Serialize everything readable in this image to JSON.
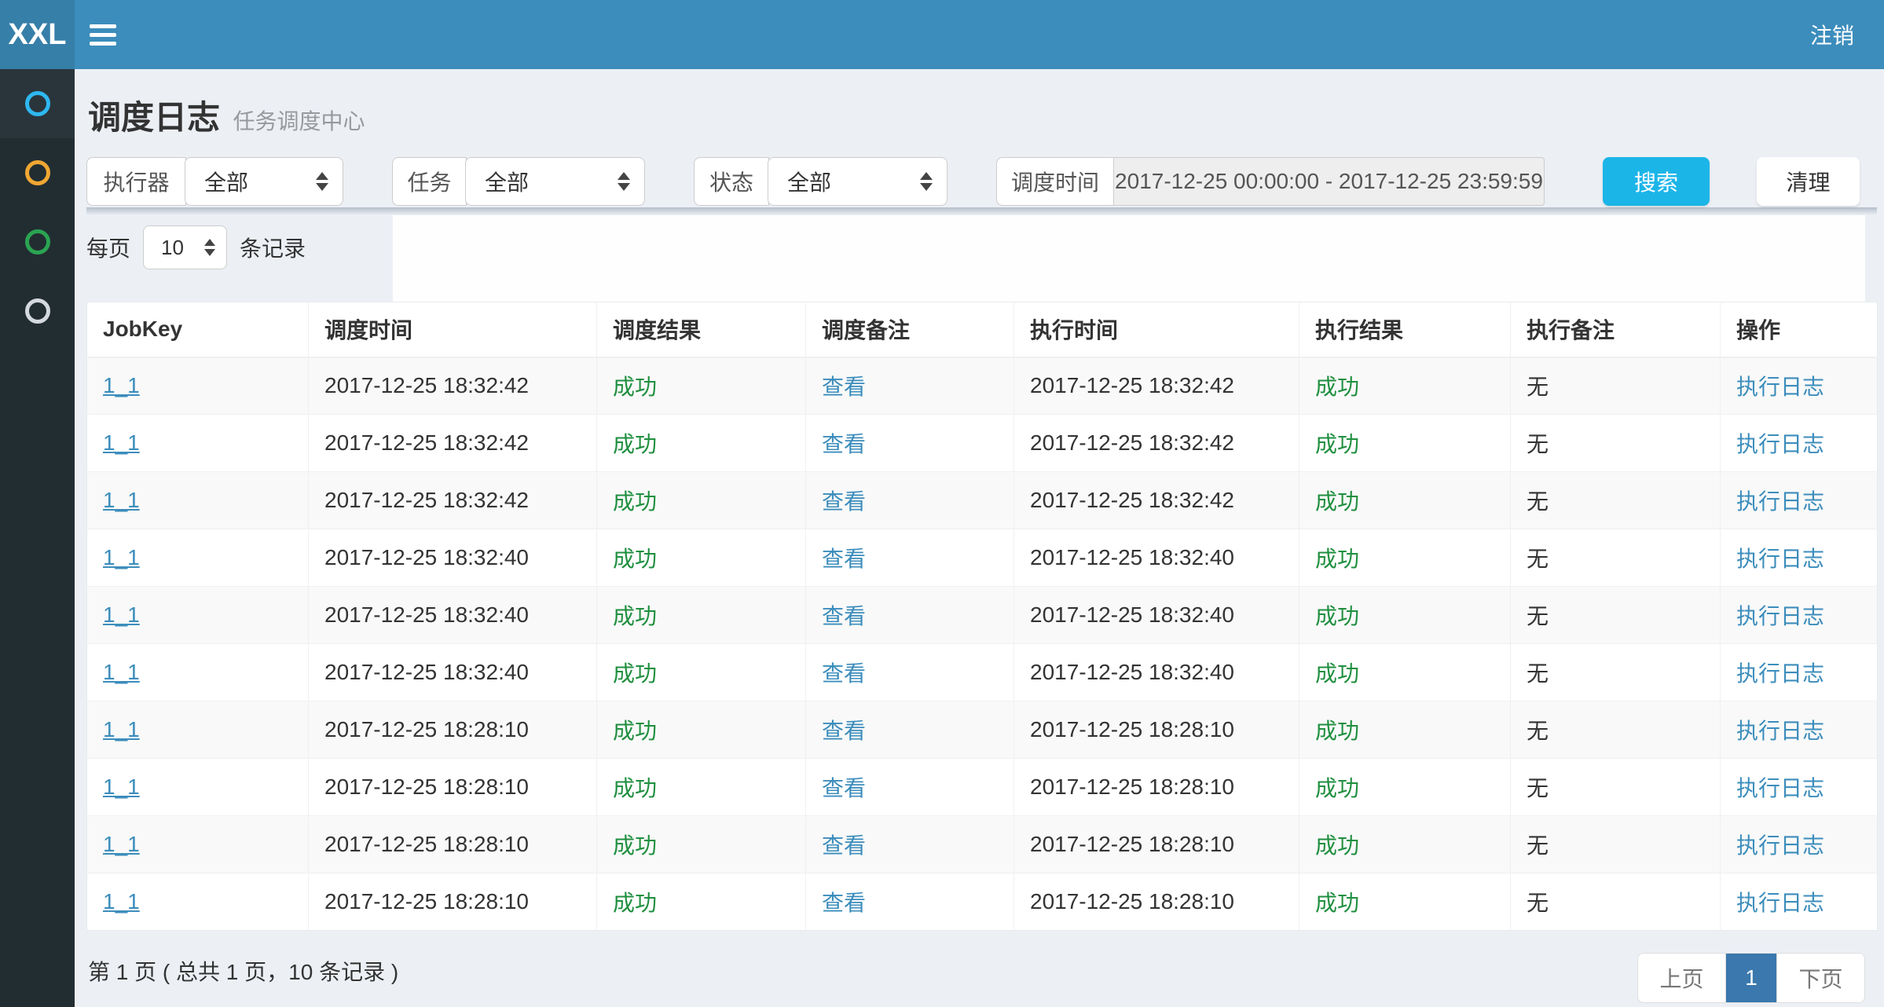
{
  "navbar": {
    "logo": "XXL",
    "logout_label": "注销"
  },
  "sidebar": {
    "items": [
      {
        "id": "item-1",
        "icon": "circle-outline-icon",
        "color": "#2eb8f0",
        "active": true
      },
      {
        "id": "item-2",
        "icon": "circle-outline-icon",
        "color": "#f0a732",
        "active": false
      },
      {
        "id": "item-3",
        "icon": "circle-outline-icon",
        "color": "#2aa452",
        "active": false
      },
      {
        "id": "item-4",
        "icon": "circle-outline-icon",
        "color": "#d4d9de",
        "active": false
      }
    ]
  },
  "page": {
    "title": "调度日志",
    "subtitle": "任务调度中心"
  },
  "filters": {
    "executor": {
      "label": "执行器",
      "value": "全部"
    },
    "job": {
      "label": "任务",
      "value": "全部"
    },
    "status": {
      "label": "状态",
      "value": "全部"
    },
    "trigger_time": {
      "label": "调度时间",
      "value": "2017-12-25 00:00:00 - 2017-12-25 23:59:59"
    },
    "search_label": "搜索",
    "clear_label": "清理"
  },
  "length_bar": {
    "prefix": "每页",
    "value": "10",
    "suffix": "条记录"
  },
  "table": {
    "headers": [
      "JobKey",
      "调度时间",
      "调度结果",
      "调度备注",
      "执行时间",
      "执行结果",
      "执行备注",
      "操作"
    ],
    "rows": [
      {
        "jobkey": "1_1",
        "trigger_time": "2017-12-25 18:32:42",
        "trigger_result": "成功",
        "trigger_msg": "查看",
        "handle_time": "2017-12-25 18:32:42",
        "handle_result": "成功",
        "handle_msg": "无",
        "action": "执行日志"
      },
      {
        "jobkey": "1_1",
        "trigger_time": "2017-12-25 18:32:42",
        "trigger_result": "成功",
        "trigger_msg": "查看",
        "handle_time": "2017-12-25 18:32:42",
        "handle_result": "成功",
        "handle_msg": "无",
        "action": "执行日志"
      },
      {
        "jobkey": "1_1",
        "trigger_time": "2017-12-25 18:32:42",
        "trigger_result": "成功",
        "trigger_msg": "查看",
        "handle_time": "2017-12-25 18:32:42",
        "handle_result": "成功",
        "handle_msg": "无",
        "action": "执行日志"
      },
      {
        "jobkey": "1_1",
        "trigger_time": "2017-12-25 18:32:40",
        "trigger_result": "成功",
        "trigger_msg": "查看",
        "handle_time": "2017-12-25 18:32:40",
        "handle_result": "成功",
        "handle_msg": "无",
        "action": "执行日志"
      },
      {
        "jobkey": "1_1",
        "trigger_time": "2017-12-25 18:32:40",
        "trigger_result": "成功",
        "trigger_msg": "查看",
        "handle_time": "2017-12-25 18:32:40",
        "handle_result": "成功",
        "handle_msg": "无",
        "action": "执行日志"
      },
      {
        "jobkey": "1_1",
        "trigger_time": "2017-12-25 18:32:40",
        "trigger_result": "成功",
        "trigger_msg": "查看",
        "handle_time": "2017-12-25 18:32:40",
        "handle_result": "成功",
        "handle_msg": "无",
        "action": "执行日志"
      },
      {
        "jobkey": "1_1",
        "trigger_time": "2017-12-25 18:28:10",
        "trigger_result": "成功",
        "trigger_msg": "查看",
        "handle_time": "2017-12-25 18:28:10",
        "handle_result": "成功",
        "handle_msg": "无",
        "action": "执行日志"
      },
      {
        "jobkey": "1_1",
        "trigger_time": "2017-12-25 18:28:10",
        "trigger_result": "成功",
        "trigger_msg": "查看",
        "handle_time": "2017-12-25 18:28:10",
        "handle_result": "成功",
        "handle_msg": "无",
        "action": "执行日志"
      },
      {
        "jobkey": "1_1",
        "trigger_time": "2017-12-25 18:28:10",
        "trigger_result": "成功",
        "trigger_msg": "查看",
        "handle_time": "2017-12-25 18:28:10",
        "handle_result": "成功",
        "handle_msg": "无",
        "action": "执行日志"
      },
      {
        "jobkey": "1_1",
        "trigger_time": "2017-12-25 18:28:10",
        "trigger_result": "成功",
        "trigger_msg": "查看",
        "handle_time": "2017-12-25 18:28:10",
        "handle_result": "成功",
        "handle_msg": "无",
        "action": "执行日志"
      }
    ]
  },
  "pagination": {
    "info": "第 1 页 ( 总共 1 页，10 条记录 )",
    "prev_label": "上页",
    "current_page": "1",
    "next_label": "下页"
  },
  "colors": {
    "navbar": "#3c8dbc",
    "logo_bg": "#367fa9",
    "sidebar": "#222d32",
    "search_button": "#1cb5e8",
    "link": "#3c8dbc",
    "success_text": "#1f8f3f",
    "pager_active": "#3a78ad",
    "content_bg": "#ecf0f5"
  }
}
